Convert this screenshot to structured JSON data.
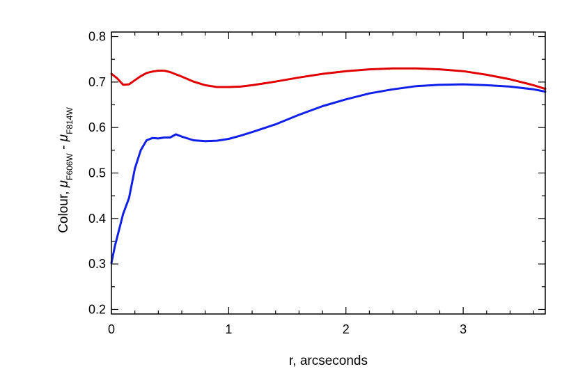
{
  "chart_data": {
    "type": "line",
    "title": "",
    "xlabel": "r, arcseconds",
    "ylabel": {
      "prefix": "Colour, ",
      "mu": "μ",
      "sub1": "F606W",
      "mid": " - ",
      "sub2": "F814W"
    },
    "xlim": [
      0,
      3.7
    ],
    "ylim": [
      0.19,
      0.81
    ],
    "xticks": [
      0,
      1,
      2,
      3
    ],
    "xtick_labels": [
      "0",
      "1",
      "2",
      "3"
    ],
    "yticks": [
      0.2,
      0.3,
      0.4,
      0.5,
      0.6,
      0.7,
      0.8
    ],
    "ytick_labels": [
      "0.2",
      "0.3",
      "0.4",
      "0.5",
      "0.6",
      "0.7",
      "0.8"
    ],
    "grid": false,
    "legend": "none",
    "series": [
      {
        "color": "#e00000",
        "x": [
          0,
          0.05,
          0.1,
          0.15,
          0.2,
          0.25,
          0.3,
          0.35,
          0.4,
          0.45,
          0.5,
          0.6,
          0.7,
          0.8,
          0.9,
          1.0,
          1.1,
          1.2,
          1.4,
          1.6,
          1.8,
          2.0,
          2.2,
          2.4,
          2.6,
          2.8,
          3.0,
          3.2,
          3.4,
          3.6,
          3.7
        ],
        "y": [
          0.718,
          0.708,
          0.694,
          0.695,
          0.704,
          0.713,
          0.72,
          0.723,
          0.725,
          0.725,
          0.722,
          0.712,
          0.701,
          0.693,
          0.689,
          0.689,
          0.69,
          0.693,
          0.701,
          0.71,
          0.718,
          0.724,
          0.728,
          0.73,
          0.73,
          0.728,
          0.724,
          0.716,
          0.706,
          0.693,
          0.685
        ]
      },
      {
        "color": "#1020e8",
        "x": [
          0,
          0.03,
          0.07,
          0.1,
          0.15,
          0.2,
          0.25,
          0.3,
          0.35,
          0.4,
          0.45,
          0.5,
          0.55,
          0.6,
          0.7,
          0.8,
          0.9,
          1.0,
          1.1,
          1.2,
          1.4,
          1.6,
          1.8,
          2.0,
          2.2,
          2.4,
          2.6,
          2.8,
          3.0,
          3.2,
          3.4,
          3.6,
          3.7
        ],
        "y": [
          0.302,
          0.34,
          0.38,
          0.41,
          0.445,
          0.51,
          0.55,
          0.572,
          0.577,
          0.576,
          0.578,
          0.578,
          0.585,
          0.58,
          0.572,
          0.57,
          0.571,
          0.575,
          0.582,
          0.59,
          0.607,
          0.628,
          0.647,
          0.662,
          0.675,
          0.684,
          0.691,
          0.694,
          0.695,
          0.693,
          0.69,
          0.684,
          0.679
        ]
      }
    ]
  }
}
